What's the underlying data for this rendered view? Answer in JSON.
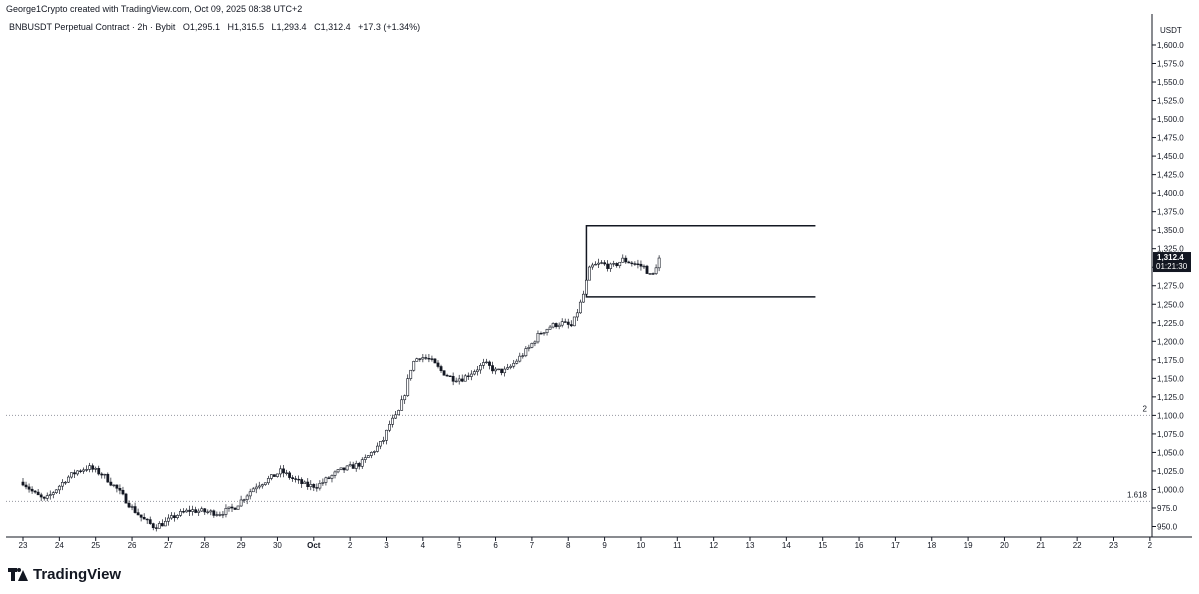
{
  "header": {
    "credit": "George1Crypto created with TradingView.com, Oct 09, 2025 08:38 UTC+2",
    "symbol": "BNBUSDT Perpetual Contract · 2h · Bybit",
    "open": "O1,295.1",
    "high": "H1,315.5",
    "low": "L1,293.4",
    "close": "C1,312.4",
    "change": "+17.3 (+1.34%)"
  },
  "price_axis": {
    "currency": "USDT",
    "current_price": "1,312.4",
    "countdown": "01:21:30"
  },
  "footer": {
    "logo_text": "TradingView"
  },
  "colors": {
    "candle": "#131722",
    "price_tag": "#131722",
    "grid_line": "#9598a1"
  },
  "chart_data": {
    "type": "candlestick",
    "title": "",
    "ylim": [
      935,
      1620
    ],
    "y_ticks": [
      950,
      975,
      1000,
      1025,
      1050,
      1075,
      1100,
      1125,
      1150,
      1175,
      1200,
      1225,
      1250,
      1275,
      1300,
      1325,
      1350,
      1375,
      1400,
      1425,
      1450,
      1475,
      1500,
      1525,
      1550,
      1575,
      1600
    ],
    "y_tick_labels": [
      "950.0",
      "975.0",
      "1,000.0",
      "1,025.0",
      "1,050.0",
      "1,075.0",
      "1,100.0",
      "1,125.0",
      "1,150.0",
      "1,175.0",
      "1,200.0",
      "1,225.0",
      "1,250.0",
      "1,275.0",
      "1,300.0",
      "1,325.0",
      "1,350.0",
      "1,375.0",
      "1,400.0",
      "1,425.0",
      "1,450.0",
      "1,475.0",
      "1,500.0",
      "1,525.0",
      "1,550.0",
      "1,575.0",
      "1,600.0"
    ],
    "x_labels": [
      "23",
      "24",
      "25",
      "26",
      "27",
      "28",
      "29",
      "30",
      "Oct",
      "2",
      "3",
      "4",
      "5",
      "6",
      "7",
      "8",
      "9",
      "10",
      "11",
      "12",
      "13",
      "14",
      "15",
      "16",
      "17",
      "18",
      "19",
      "20",
      "21",
      "22",
      "23",
      "2"
    ],
    "x_label_days": [
      0,
      1,
      2,
      3,
      4,
      5,
      6,
      7,
      8,
      9,
      10,
      11,
      12,
      13,
      14,
      15,
      16,
      17,
      18,
      19,
      20,
      21,
      22,
      23,
      24,
      25,
      26,
      27,
      28,
      29,
      30,
      31
    ],
    "bars_per_day": 12,
    "close_path": [
      [
        0.0,
        1010
      ],
      [
        0.3,
        995
      ],
      [
        0.6,
        985
      ],
      [
        0.9,
        1000
      ],
      [
        1.2,
        1015
      ],
      [
        1.5,
        1025
      ],
      [
        1.8,
        1030
      ],
      [
        2.2,
        1020
      ],
      [
        2.6,
        1000
      ],
      [
        3.0,
        975
      ],
      [
        3.3,
        960
      ],
      [
        3.6,
        950
      ],
      [
        3.9,
        955
      ],
      [
        4.2,
        965
      ],
      [
        4.6,
        972
      ],
      [
        5.0,
        970
      ],
      [
        5.4,
        968
      ],
      [
        5.8,
        975
      ],
      [
        6.1,
        990
      ],
      [
        6.4,
        1005
      ],
      [
        6.8,
        1015
      ],
      [
        7.1,
        1025
      ],
      [
        7.4,
        1015
      ],
      [
        7.8,
        1005
      ],
      [
        8.1,
        1005
      ],
      [
        8.4,
        1015
      ],
      [
        8.7,
        1025
      ],
      [
        9.0,
        1030
      ],
      [
        9.3,
        1035
      ],
      [
        9.6,
        1050
      ],
      [
        9.9,
        1065
      ],
      [
        10.1,
        1090
      ],
      [
        10.3,
        1100
      ],
      [
        10.5,
        1130
      ],
      [
        10.7,
        1170
      ],
      [
        10.9,
        1180
      ],
      [
        11.2,
        1175
      ],
      [
        11.5,
        1160
      ],
      [
        11.8,
        1150
      ],
      [
        12.1,
        1150
      ],
      [
        12.4,
        1160
      ],
      [
        12.7,
        1170
      ],
      [
        13.0,
        1160
      ],
      [
        13.3,
        1160
      ],
      [
        13.6,
        1175
      ],
      [
        13.9,
        1190
      ],
      [
        14.2,
        1210
      ],
      [
        14.5,
        1220
      ],
      [
        14.8,
        1225
      ],
      [
        15.1,
        1220
      ],
      [
        15.4,
        1260
      ],
      [
        15.6,
        1300
      ],
      [
        15.9,
        1305
      ],
      [
        16.2,
        1300
      ],
      [
        16.5,
        1310
      ],
      [
        16.8,
        1305
      ],
      [
        17.1,
        1300
      ],
      [
        17.3,
        1285
      ],
      [
        17.4,
        1300
      ],
      [
        17.5,
        1312.4
      ]
    ],
    "range_box": {
      "top": 1356,
      "bottom": 1260,
      "x_start": 15.5,
      "x_end": 21.8
    },
    "fib_levels": [
      {
        "label": "2",
        "price": 1100
      },
      {
        "label": "1.618",
        "price": 984
      }
    ],
    "last_price": 1312.4
  }
}
